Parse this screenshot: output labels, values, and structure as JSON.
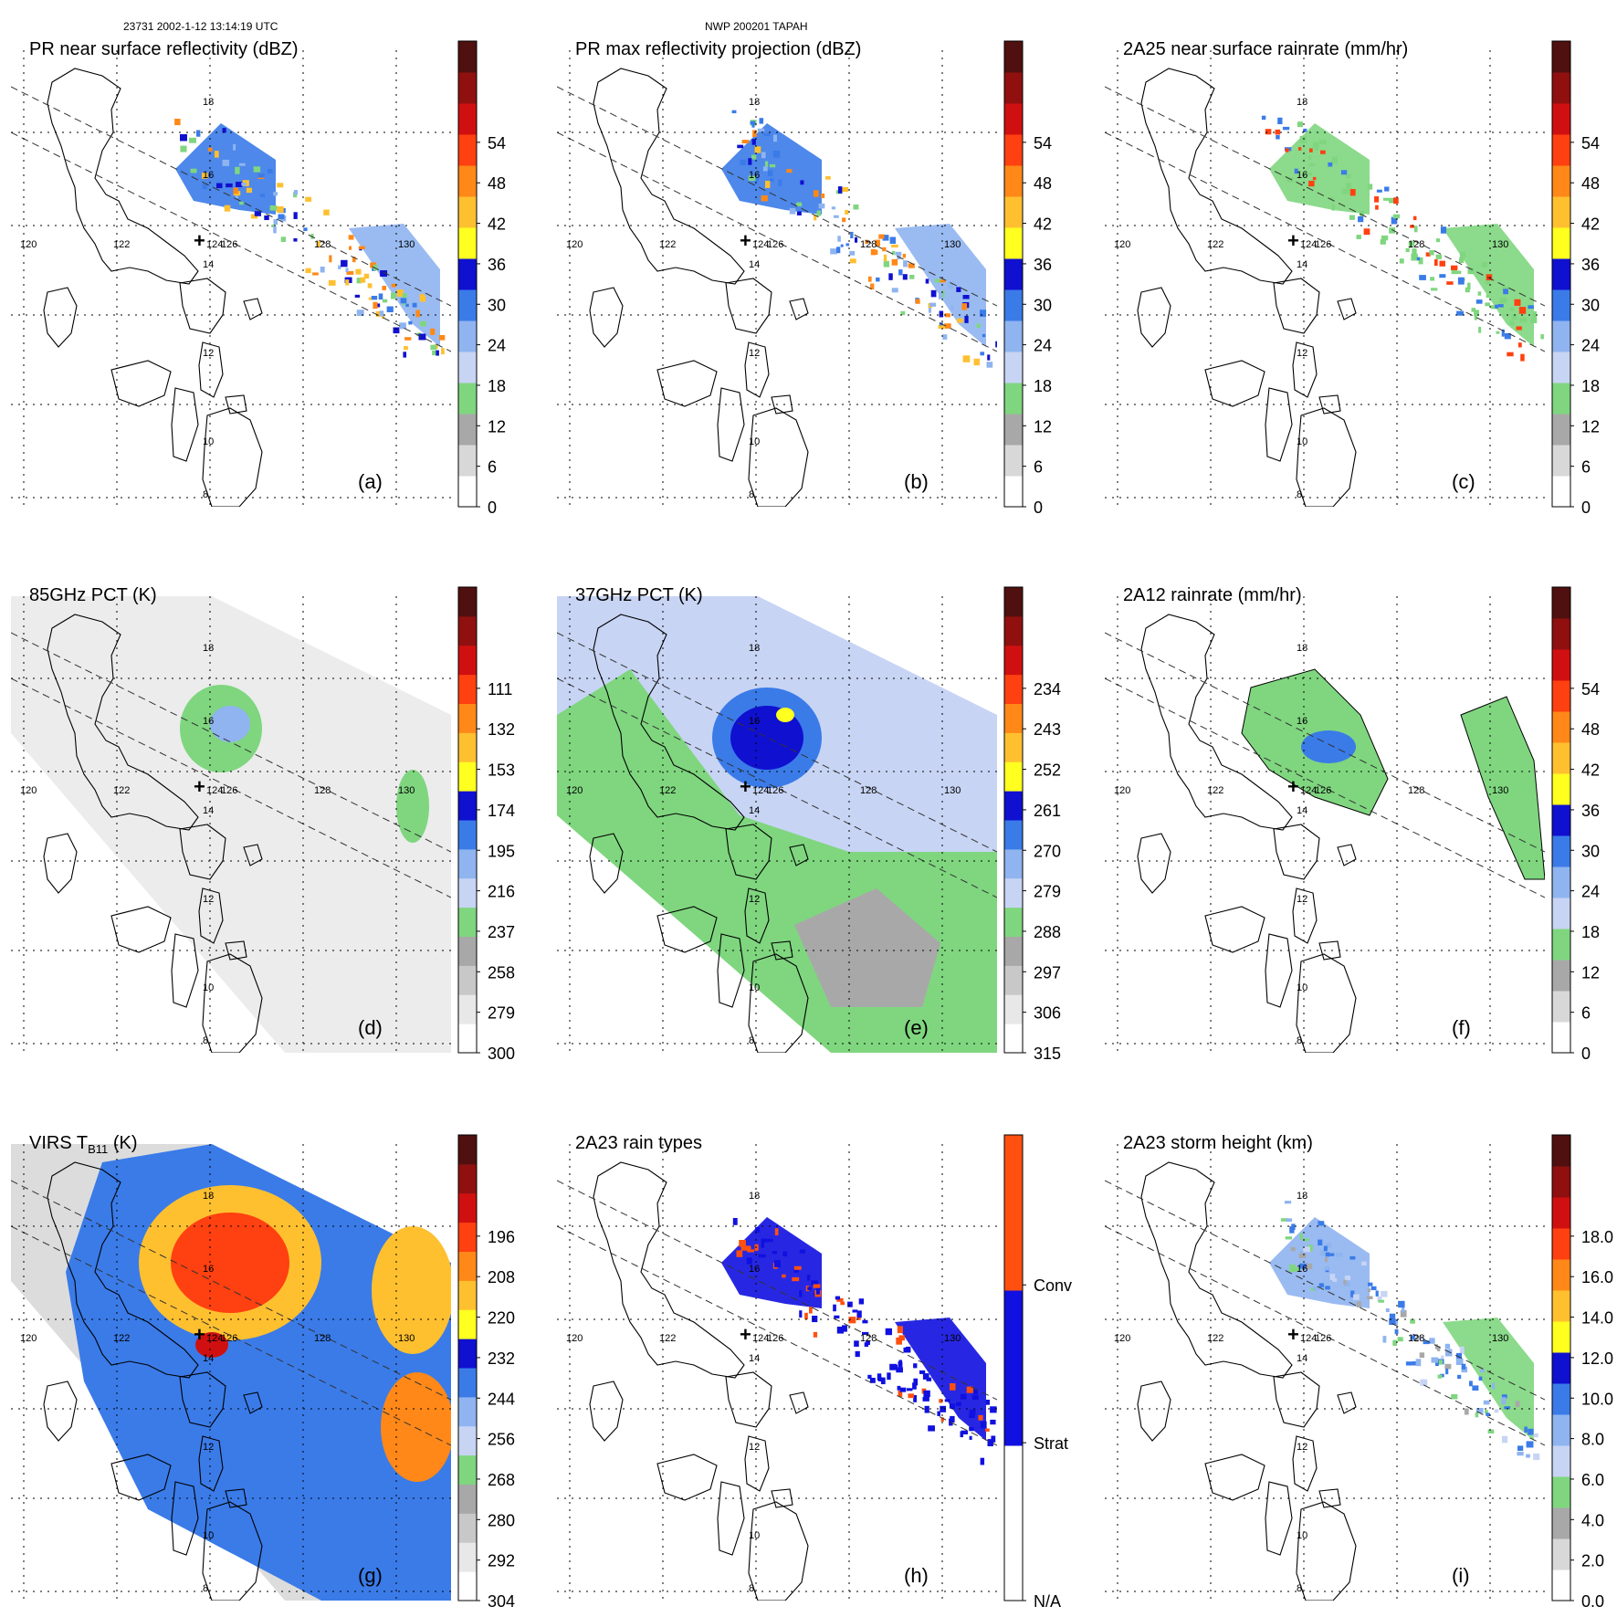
{
  "header": {
    "left": "23731 2002-1-12 13:14:19 UTC",
    "center": "NWP 200201 TAPAH"
  },
  "map": {
    "lat_labels": [
      "18",
      "16",
      "14",
      "12",
      "10",
      "8"
    ],
    "lon_labels": [
      "120",
      "122",
      "124",
      "126",
      "128",
      "130"
    ],
    "center_marker": "+"
  },
  "panels": [
    {
      "id": "a",
      "title": "PR near surface reflectivity (dBZ)",
      "letter": "(a)",
      "ticks": [
        "0",
        "6",
        "12",
        "18",
        "24",
        "30",
        "36",
        "42",
        "48",
        "54"
      ],
      "field": "pr-swath"
    },
    {
      "id": "b",
      "title": "PR max reflectivity projection (dBZ)",
      "letter": "(b)",
      "ticks": [
        "0",
        "6",
        "12",
        "18",
        "24",
        "30",
        "36",
        "42",
        "48",
        "54"
      ],
      "field": "pr-swath"
    },
    {
      "id": "c",
      "title": "2A25 near surface rainrate (mm/hr)",
      "letter": "(c)",
      "ticks": [
        "0",
        "6",
        "12",
        "18",
        "24",
        "30",
        "36",
        "42",
        "48",
        "54"
      ],
      "field": "pr-swath-green"
    },
    {
      "id": "d",
      "title": "85GHz PCT (K)",
      "letter": "(d)",
      "ticks": [
        "300",
        "279",
        "258",
        "237",
        "216",
        "195",
        "174",
        "153",
        "132",
        "111"
      ],
      "field": "tmi-gray"
    },
    {
      "id": "e",
      "title": "37GHz PCT (K)",
      "letter": "(e)",
      "ticks": [
        "315",
        "306",
        "297",
        "288",
        "279",
        "270",
        "261",
        "252",
        "243",
        "234"
      ],
      "field": "tmi-blue"
    },
    {
      "id": "f",
      "title": "2A12 rainrate (mm/hr)",
      "letter": "(f)",
      "ticks": [
        "0",
        "6",
        "12",
        "18",
        "24",
        "30",
        "36",
        "42",
        "48",
        "54"
      ],
      "field": "tmi-rain"
    },
    {
      "id": "g",
      "title": "VIRS T",
      "title_sub": "B11",
      "title_tail": " (K)",
      "letter": "(g)",
      "ticks": [
        "304",
        "292",
        "280",
        "268",
        "256",
        "244",
        "232",
        "220",
        "208",
        "196"
      ],
      "field": "virs"
    },
    {
      "id": "h",
      "title": "2A23 rain types",
      "letter": "(h)",
      "ticks": [
        "N/A",
        "Strat",
        "Conv"
      ],
      "field": "pr-type"
    },
    {
      "id": "i",
      "title": "2A23 storm height (km)",
      "letter": "(i)",
      "ticks": [
        "0.0",
        "2.0",
        "4.0",
        "6.0",
        "8.0",
        "10.0",
        "12.0",
        "14.0",
        "16.0",
        "18.0"
      ],
      "field": "pr-height"
    }
  ],
  "colors": {
    "scale_standard": [
      "#ffffff",
      "#d8d8d8",
      "#a8a8a8",
      "#7fd67f",
      "#c8d4f4",
      "#8fb4f0",
      "#3a7be8",
      "#1010d0",
      "#ffff20",
      "#ffc030",
      "#ff8818",
      "#ff4010",
      "#d01010",
      "#901010",
      "#501010"
    ],
    "scale_inverted_gray": [
      "#ffffff",
      "#e8e8e8",
      "#c8c8c8",
      "#a8a8a8",
      "#7fd67f",
      "#c8d4f4",
      "#8fb4f0",
      "#3a7be8",
      "#1010d0",
      "#ffff20",
      "#ffc030",
      "#ff8818",
      "#ff4010",
      "#d01010",
      "#901010",
      "#501010"
    ],
    "rain_type": [
      "#ffffff",
      "#1010e0",
      "#ff5010"
    ]
  }
}
